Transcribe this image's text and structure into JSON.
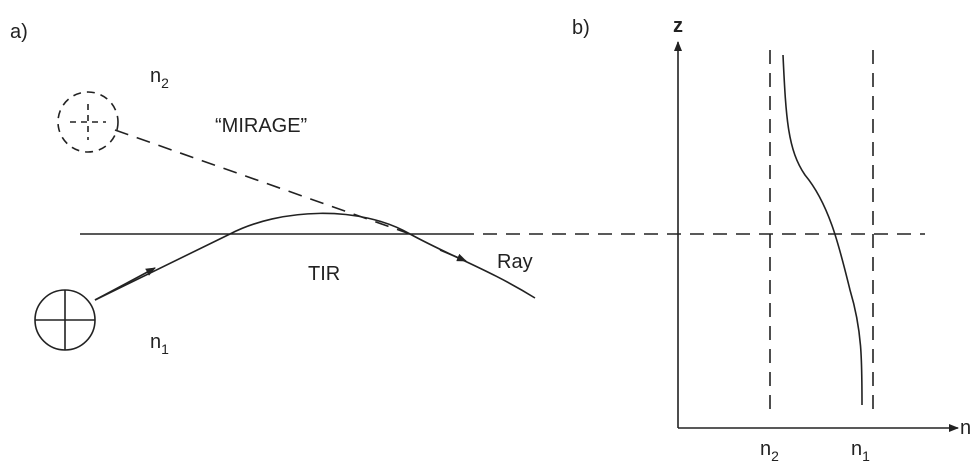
{
  "panel_a": {
    "label": "a)",
    "medium_top": {
      "base": "n",
      "sub": "2"
    },
    "mirage": "“MIRAGE”",
    "tir": "TIR",
    "ray": "Ray",
    "medium_bottom": {
      "base": "n",
      "sub": "1"
    }
  },
  "panel_b": {
    "label": "b)",
    "y_axis": "z",
    "x_axis": "n",
    "tick_left": {
      "base": "n",
      "sub": "2"
    },
    "tick_right": {
      "base": "n",
      "sub": "1"
    }
  }
}
